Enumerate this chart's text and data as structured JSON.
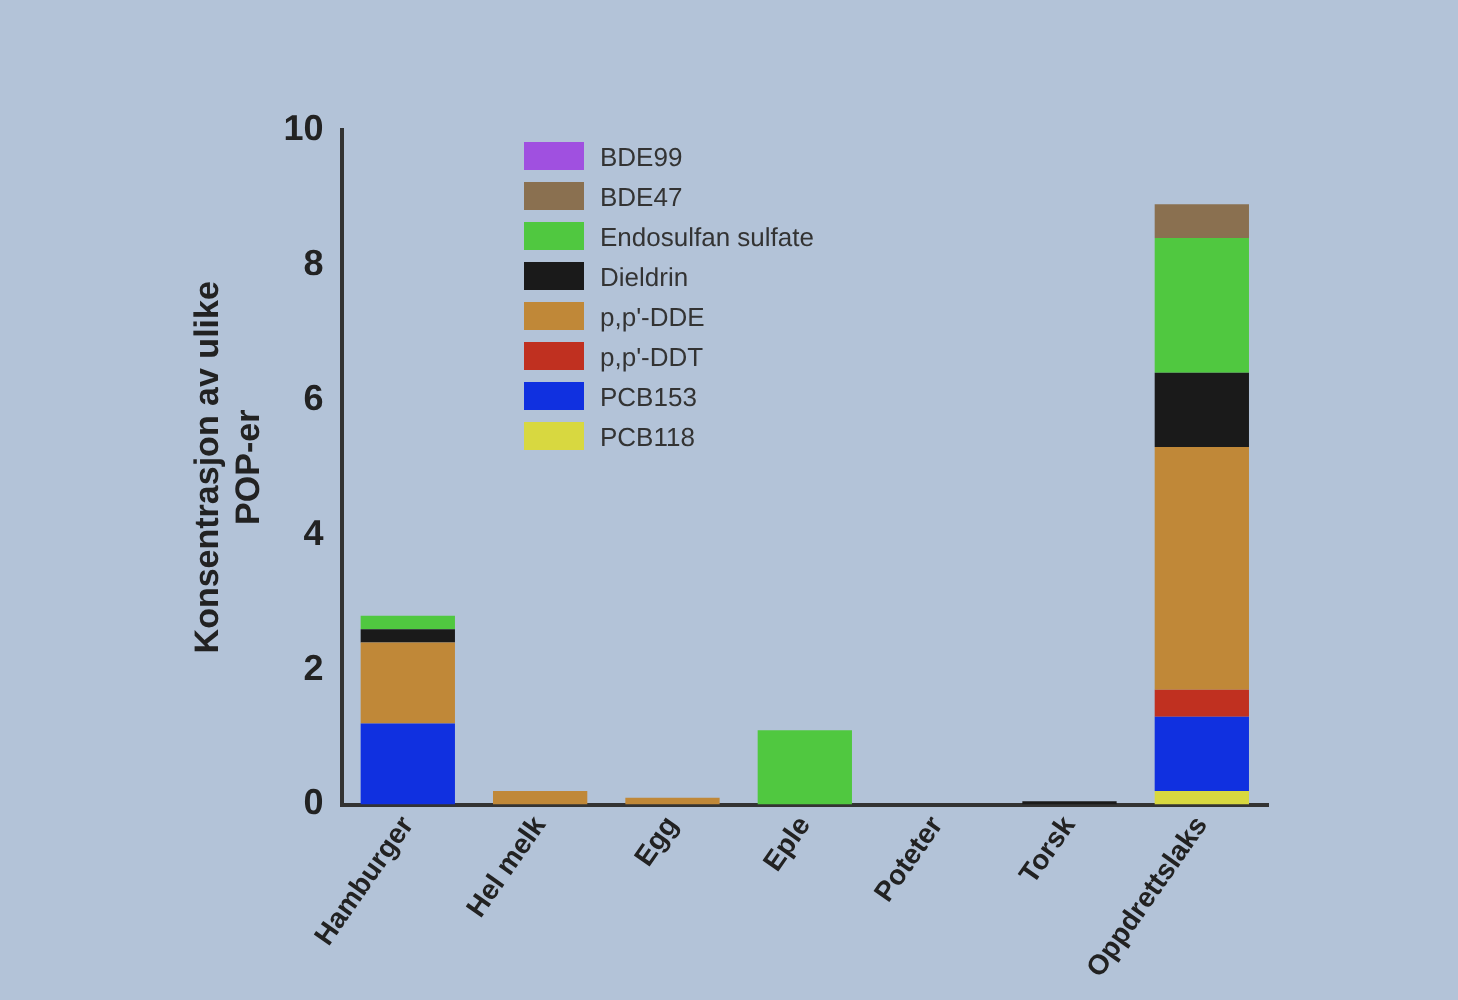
{
  "chart_data": {
    "type": "bar",
    "stacked": true,
    "ylabel": "Konsentrasjon av ulike POP-er",
    "categories": [
      "Hamburger",
      "Hel melk",
      "Egg",
      "Eple",
      "Poteter",
      "Torsk",
      "Oppdrettslaks"
    ],
    "ylim": [
      0,
      10
    ],
    "yticks": [
      0,
      2,
      4,
      6,
      8,
      10
    ],
    "grid": false,
    "legend": "top left",
    "series": [
      {
        "name": "PCB118",
        "color": "#d8d840",
        "values": [
          0,
          0,
          0,
          0,
          0,
          0,
          0.2
        ]
      },
      {
        "name": "PCB153",
        "color": "#1030e0",
        "values": [
          1.2,
          0,
          0,
          0,
          0,
          0,
          1.1
        ]
      },
      {
        "name": "p,p'-DDT",
        "color": "#c03020",
        "values": [
          0,
          0,
          0,
          0,
          0,
          0,
          0.4
        ]
      },
      {
        "name": "p,p'-DDE",
        "color": "#c08838",
        "values": [
          1.2,
          0.2,
          0.1,
          0,
          0,
          0,
          3.6
        ]
      },
      {
        "name": "Dieldrin",
        "color": "#1a1a1a",
        "values": [
          0.2,
          0,
          0,
          0,
          0,
          0.05,
          1.1
        ]
      },
      {
        "name": "Endosulfan sulfate",
        "color": "#50c840",
        "values": [
          0.2,
          0,
          0,
          1.1,
          0,
          0,
          2.0
        ]
      },
      {
        "name": "BDE47",
        "color": "#8a7050",
        "values": [
          0,
          0,
          0,
          0,
          0,
          0,
          0.5
        ]
      },
      {
        "name": "BDE99",
        "color": "#a050e0",
        "values": [
          0,
          0,
          0,
          0,
          0,
          0,
          0
        ]
      }
    ]
  }
}
